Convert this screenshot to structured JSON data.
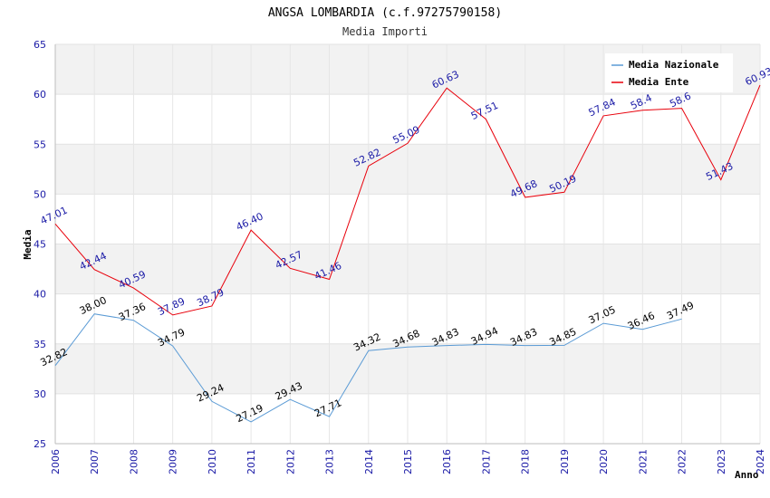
{
  "chart_data": {
    "type": "line",
    "title": "ANGSA LOMBARDIA (c.f.97275790158)",
    "subtitle": "Media Importi",
    "xlabel": "Anno",
    "ylabel": "Media",
    "ylim": [
      25,
      65
    ],
    "yticks": [
      25,
      30,
      35,
      40,
      45,
      50,
      55,
      60,
      65
    ],
    "x": [
      2006,
      2007,
      2008,
      2009,
      2010,
      2011,
      2012,
      2013,
      2014,
      2015,
      2016,
      2017,
      2018,
      2019,
      2020,
      2021,
      2022,
      2023,
      2024
    ],
    "grid": true,
    "legend_position": "top-right",
    "series": [
      {
        "name": "Media Nazionale",
        "color": "#5b9bd5",
        "label_color": "#000000",
        "values": [
          32.82,
          38.0,
          37.36,
          34.79,
          29.24,
          27.19,
          29.43,
          27.71,
          34.32,
          34.68,
          34.83,
          34.94,
          34.83,
          34.85,
          37.05,
          36.46,
          37.49,
          null,
          null
        ],
        "labels": [
          "32.82",
          "38.00",
          "37.36",
          "34.79",
          "29.24",
          "27.19",
          "29.43",
          "27.71",
          "34.32",
          "34.68",
          "34.83",
          "34.94",
          "34.83",
          "34.85",
          "37.05",
          "36.46",
          "37.49",
          "",
          ""
        ]
      },
      {
        "name": "Media Ente",
        "color": "#e8000b",
        "label_color": "#1a1aa6",
        "values": [
          47.01,
          42.44,
          40.59,
          37.89,
          38.79,
          46.4,
          42.57,
          41.46,
          52.82,
          55.09,
          60.63,
          57.51,
          49.68,
          50.19,
          57.84,
          58.4,
          58.6,
          51.43,
          60.93
        ],
        "labels": [
          "47.01",
          "42.44",
          "40.59",
          "37.89",
          "38.79",
          "46.40",
          "42.57",
          "41.46",
          "52.82",
          "55.09",
          "60.63",
          "57.51",
          "49.68",
          "50.19",
          "57.84",
          "58.4",
          "58.6",
          "51.43",
          "60.93"
        ]
      }
    ]
  }
}
